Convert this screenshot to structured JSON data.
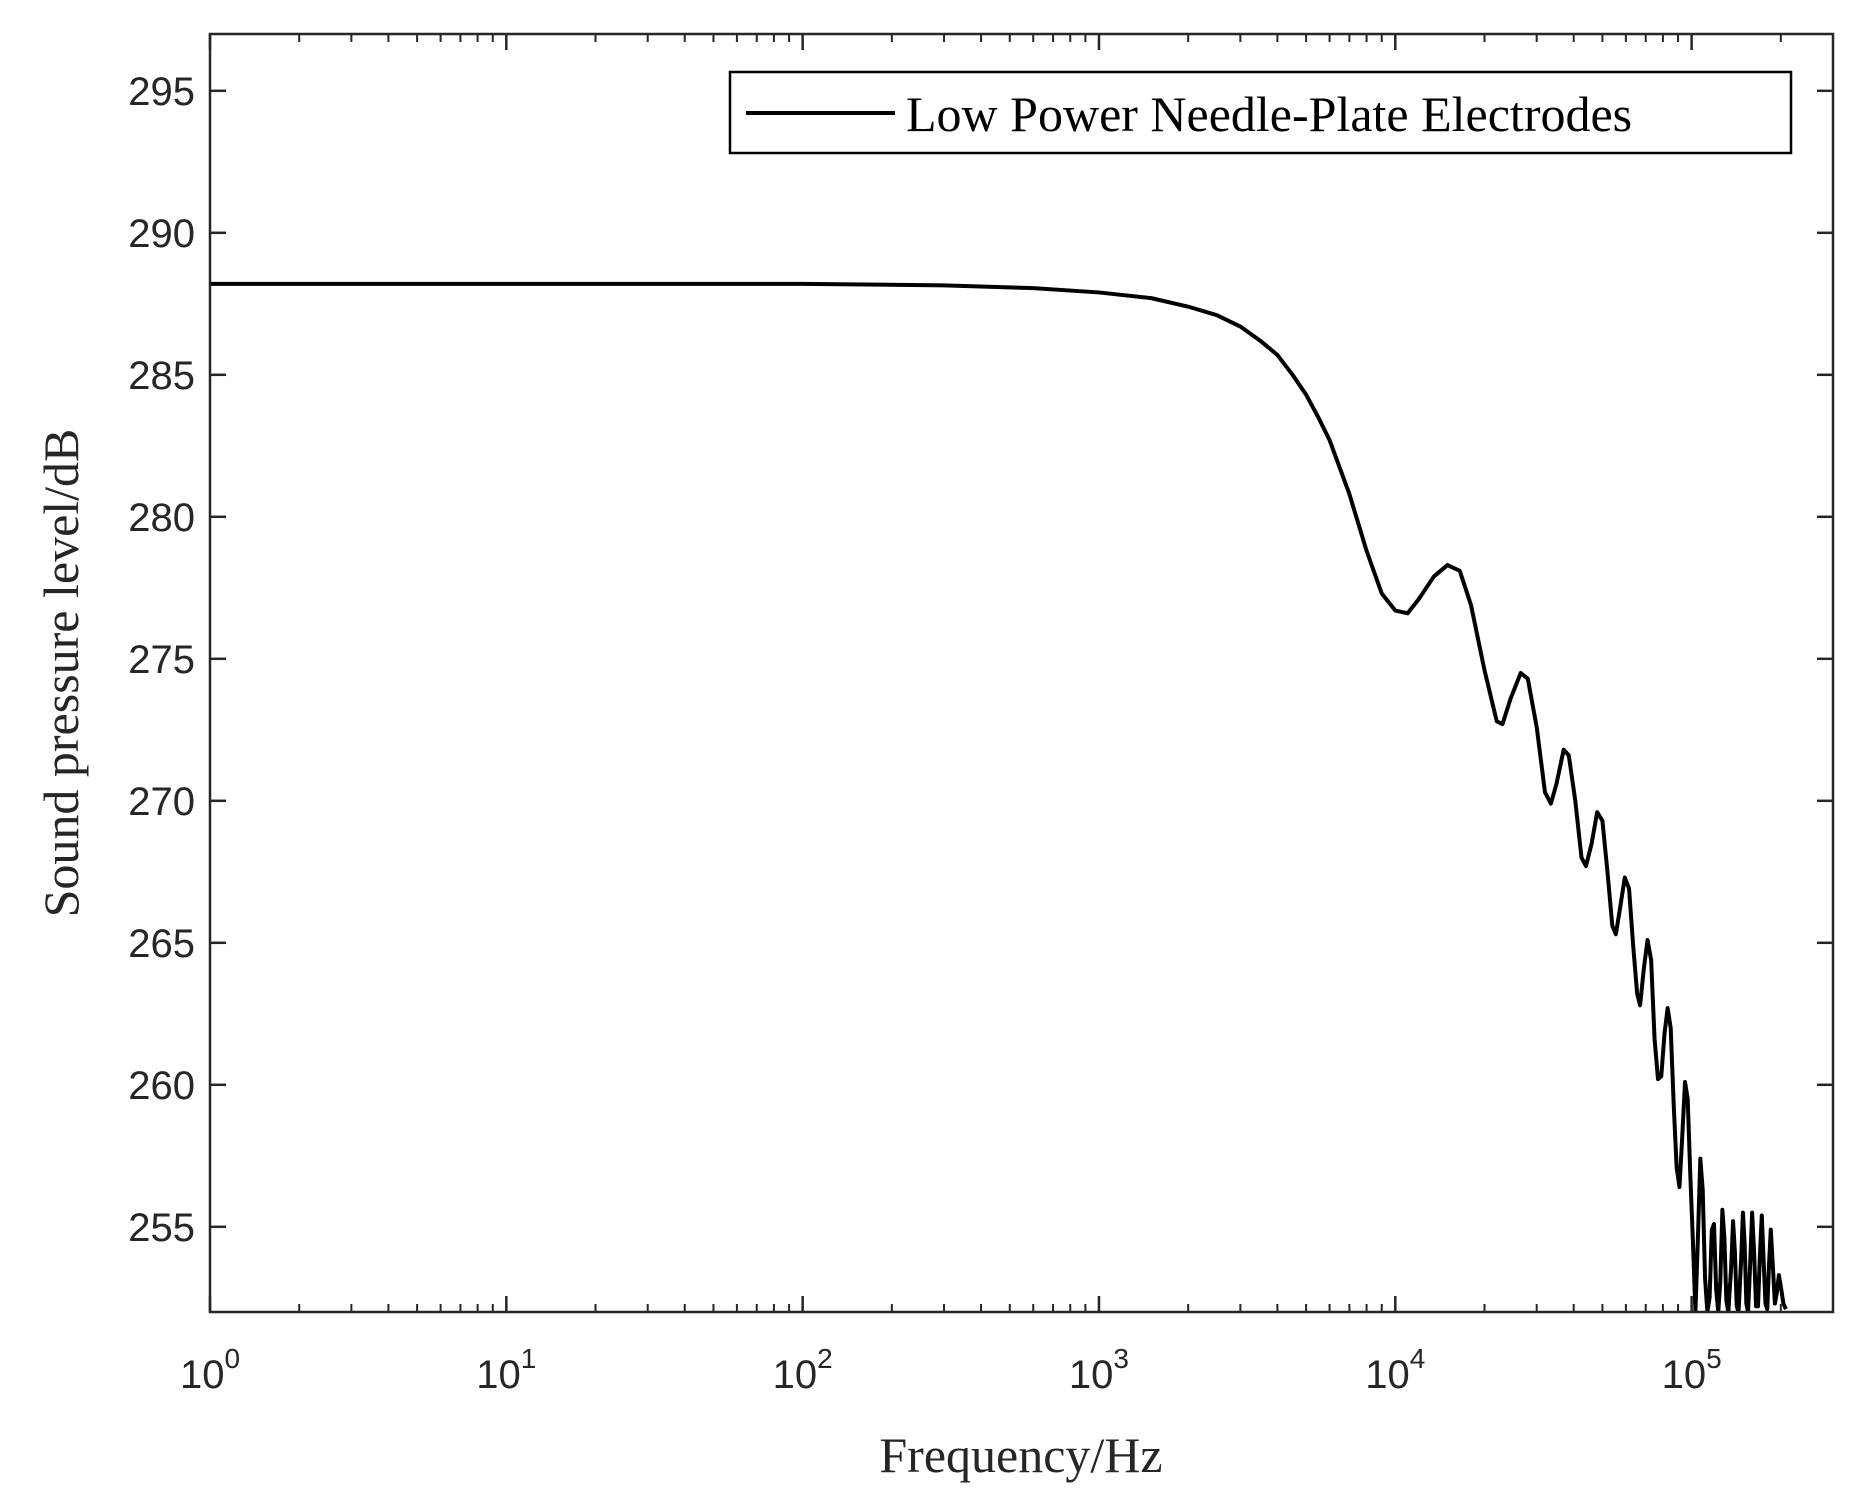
{
  "chart_data": {
    "type": "line",
    "title": "",
    "xlabel": "Frequency/Hz",
    "ylabel": "Sound pressure level/dB",
    "x_scale": "log",
    "xlim": [
      1,
      300000
    ],
    "ylim": [
      252,
      297
    ],
    "x_tick_labels": [
      {
        "base": "10",
        "exp": "0"
      },
      {
        "base": "10",
        "exp": "1"
      },
      {
        "base": "10",
        "exp": "2"
      },
      {
        "base": "10",
        "exp": "3"
      },
      {
        "base": "10",
        "exp": "4"
      },
      {
        "base": "10",
        "exp": "5"
      }
    ],
    "y_tick_labels": [
      "255",
      "260",
      "265",
      "270",
      "275",
      "280",
      "285",
      "290",
      "295"
    ],
    "grid": false,
    "box": true,
    "legend_position": "top-right",
    "series": [
      {
        "name": "Low Power Needle-Plate Electrodes",
        "color": "#000000",
        "points": [
          [
            1,
            288.2
          ],
          [
            10,
            288.2
          ],
          [
            100,
            288.2
          ],
          [
            300,
            288.15
          ],
          [
            600,
            288.05
          ],
          [
            1000,
            287.9
          ],
          [
            1500,
            287.7
          ],
          [
            2000,
            287.4
          ],
          [
            2500,
            287.1
          ],
          [
            3000,
            286.7
          ],
          [
            3500,
            286.2
          ],
          [
            4000,
            285.7
          ],
          [
            4500,
            285.0
          ],
          [
            5000,
            284.3
          ],
          [
            5500,
            283.5
          ],
          [
            6000,
            282.7
          ],
          [
            7000,
            280.8
          ],
          [
            8000,
            278.8
          ],
          [
            9000,
            277.3
          ],
          [
            10000,
            276.7
          ],
          [
            11000,
            276.6
          ],
          [
            12000,
            277.1
          ],
          [
            13500,
            277.9
          ],
          [
            15000,
            278.3
          ],
          [
            16500,
            278.1
          ],
          [
            18000,
            276.9
          ],
          [
            20000,
            274.6
          ],
          [
            22000,
            272.8
          ],
          [
            23000,
            272.7
          ],
          [
            24500,
            273.6
          ],
          [
            26500,
            274.5
          ],
          [
            28000,
            274.3
          ],
          [
            30000,
            272.6
          ],
          [
            32000,
            270.3
          ],
          [
            33500,
            269.9
          ],
          [
            35000,
            270.6
          ],
          [
            37000,
            271.8
          ],
          [
            38500,
            271.6
          ],
          [
            40500,
            270.0
          ],
          [
            42500,
            268.0
          ],
          [
            44000,
            267.7
          ],
          [
            46000,
            268.5
          ],
          [
            48000,
            269.6
          ],
          [
            50000,
            269.3
          ],
          [
            52000,
            267.5
          ],
          [
            54000,
            265.6
          ],
          [
            55500,
            265.3
          ],
          [
            57500,
            266.3
          ],
          [
            59500,
            267.3
          ],
          [
            61500,
            266.9
          ],
          [
            63500,
            264.9
          ],
          [
            65500,
            263.2
          ],
          [
            67000,
            262.8
          ],
          [
            69000,
            264.1
          ],
          [
            71000,
            265.1
          ],
          [
            73000,
            264.4
          ],
          [
            75000,
            261.6
          ],
          [
            77000,
            260.2
          ],
          [
            79000,
            260.3
          ],
          [
            81000,
            261.8
          ],
          [
            83000,
            262.7
          ],
          [
            85000,
            262.0
          ],
          [
            87000,
            259.3
          ],
          [
            89000,
            257.1
          ],
          [
            91000,
            256.4
          ],
          [
            93000,
            258.2
          ],
          [
            95000,
            260.1
          ],
          [
            97000,
            259.5
          ],
          [
            99000,
            256.8
          ],
          [
            101000,
            254.5
          ],
          [
            103000,
            252.0
          ],
          [
            105000,
            254.6
          ],
          [
            107000,
            257.4
          ],
          [
            109000,
            256.3
          ],
          [
            111000,
            253.2
          ],
          [
            113000,
            252.0
          ],
          [
            115000,
            252.5
          ],
          [
            117000,
            254.9
          ],
          [
            119000,
            255.1
          ],
          [
            121000,
            252.8
          ],
          [
            123000,
            252.0
          ],
          [
            125000,
            253.1
          ],
          [
            127000,
            255.6
          ],
          [
            129000,
            254.6
          ],
          [
            131000,
            252.4
          ],
          [
            133000,
            252.0
          ],
          [
            136000,
            253.6
          ],
          [
            138000,
            255.2
          ],
          [
            140000,
            254.1
          ],
          [
            142000,
            252.2
          ],
          [
            144000,
            252.0
          ],
          [
            147000,
            253.9
          ],
          [
            149000,
            255.5
          ],
          [
            151000,
            254.4
          ],
          [
            153000,
            252.3
          ],
          [
            155000,
            252.0
          ],
          [
            157500,
            253.6
          ],
          [
            160000,
            255.5
          ],
          [
            162500,
            254.1
          ],
          [
            165000,
            252.2
          ],
          [
            167500,
            252.2
          ],
          [
            170000,
            254.0
          ],
          [
            172500,
            255.4
          ],
          [
            175000,
            253.8
          ],
          [
            177500,
            252.3
          ],
          [
            180000,
            252.1
          ],
          [
            182500,
            253.7
          ],
          [
            185000,
            254.9
          ],
          [
            188000,
            253.6
          ],
          [
            191000,
            252.3
          ],
          [
            194000,
            252.7
          ],
          [
            197000,
            253.3
          ],
          [
            200000,
            252.9
          ],
          [
            204000,
            252.3
          ],
          [
            208000,
            252.1
          ]
        ]
      }
    ]
  }
}
